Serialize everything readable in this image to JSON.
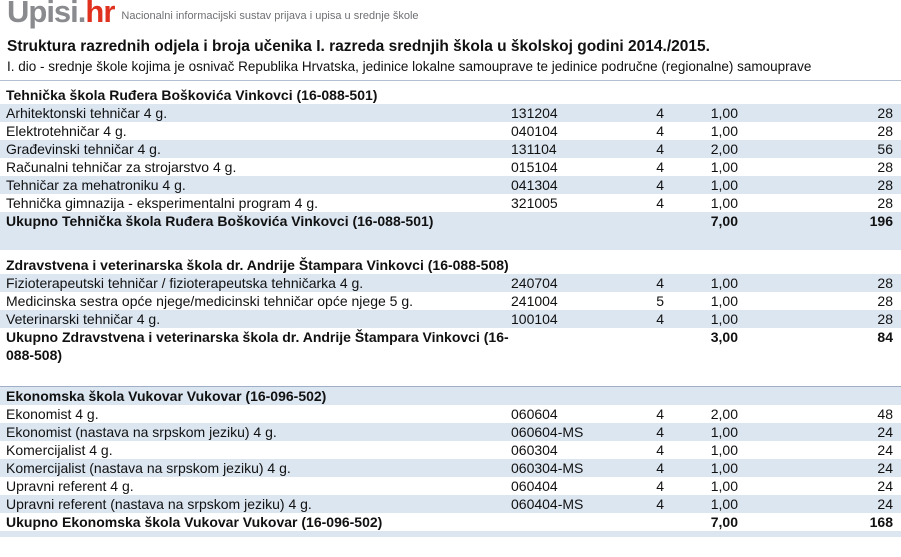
{
  "header": {
    "logo_primary": "Upisi.",
    "logo_suffix": "hr",
    "tagline": "Nacionalni informacijski sustav prijava i upisa u srednje škole"
  },
  "title": "Struktura razrednih odjela i broja učenika I. razreda srednjih škola u školskoj godini 2014./2015.",
  "subtitle": "I. dio - srednje škole kojima je osnivač Republika Hrvatska, jedinice lokalne samouprave te jedinice područne (regionalne) samouprave",
  "colors": {
    "logo_gray": "#8a8b8e",
    "logo_red": "#e0301e",
    "row_band_blue": "#dce6f1",
    "rule_gray": "#b3c0d2"
  },
  "table": {
    "sections": [
      {
        "school": "Tehnička škola Ruđera Boškovića Vinkovci (16-088-501)",
        "rows": [
          {
            "program": "Arhitektonski tehničar 4 g.",
            "code": "131204",
            "duration": "4",
            "classes": "1,00",
            "students": "28"
          },
          {
            "program": "Elektrotehničar 4 g.",
            "code": "040104",
            "duration": "4",
            "classes": "1,00",
            "students": "28"
          },
          {
            "program": "Građevinski tehničar 4 g.",
            "code": "131104",
            "duration": "4",
            "classes": "2,00",
            "students": "56"
          },
          {
            "program": "Računalni tehničar za strojarstvo 4 g.",
            "code": "015104",
            "duration": "4",
            "classes": "1,00",
            "students": "28"
          },
          {
            "program": "Tehničar za mehatroniku 4 g.",
            "code": "041304",
            "duration": "4",
            "classes": "1,00",
            "students": "28"
          },
          {
            "program": "Tehnička gimnazija - eksperimentalni program 4 g.",
            "code": "321005",
            "duration": "4",
            "classes": "1,00",
            "students": "28"
          }
        ],
        "total": {
          "label": "Ukupno Tehnička škola Ruđera Boškovića Vinkovci (16-088-501)",
          "classes": "7,00",
          "students": "196"
        }
      },
      {
        "school": "Zdravstvena i veterinarska škola dr. Andrije Štampara Vinkovci (16-088-508)",
        "rows": [
          {
            "program": "Fizioterapeutski tehničar / fizioterapeutska tehničarka 4 g.",
            "code": "240704",
            "duration": "4",
            "classes": "1,00",
            "students": "28"
          },
          {
            "program": "Medicinska sestra opće njege/medicinski tehničar opće njege 5 g.",
            "code": "241004",
            "duration": "5",
            "classes": "1,00",
            "students": "28"
          },
          {
            "program": "Veterinarski tehničar 4 g.",
            "code": "100104",
            "duration": "4",
            "classes": "1,00",
            "students": "28"
          }
        ],
        "total": {
          "label": "Ukupno Zdravstvena i veterinarska škola dr. Andrije Štampara Vinkovci (16-088-508)",
          "classes": "3,00",
          "students": "84"
        }
      },
      {
        "school": "Ekonomska škola Vukovar Vukovar (16-096-502)",
        "rows": [
          {
            "program": "Ekonomist 4 g.",
            "code": "060604",
            "duration": "4",
            "classes": "2,00",
            "students": "48"
          },
          {
            "program": "Ekonomist (nastava na srpskom jeziku) 4 g.",
            "code": "060604-MS",
            "duration": "4",
            "classes": "1,00",
            "students": "24"
          },
          {
            "program": "Komercijalist 4 g.",
            "code": "060304",
            "duration": "4",
            "classes": "1,00",
            "students": "24"
          },
          {
            "program": "Komercijalist (nastava na srpskom jeziku) 4 g.",
            "code": "060304-MS",
            "duration": "4",
            "classes": "1,00",
            "students": "24"
          },
          {
            "program": "Upravni referent 4 g.",
            "code": "060404",
            "duration": "4",
            "classes": "1,00",
            "students": "24"
          },
          {
            "program": "Upravni referent (nastava na srpskom jeziku) 4 g.",
            "code": "060404-MS",
            "duration": "4",
            "classes": "1,00",
            "students": "24"
          }
        ],
        "total": {
          "label": "Ukupno Ekonomska škola Vukovar Vukovar (16-096-502)",
          "classes": "7,00",
          "students": "168"
        }
      }
    ]
  }
}
